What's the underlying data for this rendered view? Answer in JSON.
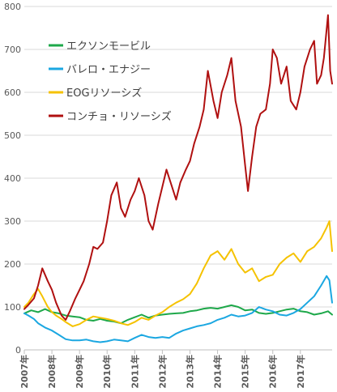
{
  "colors": {
    "exxon": "#1ea84a",
    "valero": "#1ba7e1",
    "eog": "#f5c200",
    "concho": "#b01010",
    "grid": "#d9d9d9",
    "axis": "#bfbfbf",
    "text": "#595959"
  },
  "chart_data": {
    "type": "line",
    "title": "",
    "xlabel": "",
    "ylabel": "",
    "ylim": [
      0,
      800
    ],
    "yticks": [
      0,
      100,
      200,
      300,
      400,
      500,
      600,
      700,
      800
    ],
    "xrange": [
      2007.0,
      2018.15
    ],
    "xticks": [
      {
        "value": 2007,
        "label": "2007年"
      },
      {
        "value": 2008,
        "label": "2008年"
      },
      {
        "value": 2009,
        "label": "2009年"
      },
      {
        "value": 2010,
        "label": "2010年"
      },
      {
        "value": 2011,
        "label": "2011年"
      },
      {
        "value": 2012,
        "label": "2012年"
      },
      {
        "value": 2013,
        "label": "2013年"
      },
      {
        "value": 2014,
        "label": "2014年"
      },
      {
        "value": 2015,
        "label": "2015年"
      },
      {
        "value": 2016,
        "label": "2016年"
      },
      {
        "value": 2017,
        "label": "2017年"
      }
    ],
    "grid": "horizontal",
    "legend_position": "top-left",
    "series": [
      {
        "name": "エクソンモービル",
        "color_key": "exxon",
        "x": [
          2007.0,
          2007.25,
          2007.5,
          2007.75,
          2008.0,
          2008.25,
          2008.5,
          2008.75,
          2009.0,
          2009.25,
          2009.5,
          2009.75,
          2010.0,
          2010.25,
          2010.5,
          2010.75,
          2011.0,
          2011.25,
          2011.5,
          2011.75,
          2012.0,
          2012.25,
          2012.5,
          2012.75,
          2013.0,
          2013.25,
          2013.5,
          2013.75,
          2014.0,
          2014.25,
          2014.5,
          2014.75,
          2015.0,
          2015.25,
          2015.5,
          2015.75,
          2016.0,
          2016.25,
          2016.5,
          2016.75,
          2017.0,
          2017.25,
          2017.5,
          2017.75,
          2018.0,
          2018.15
        ],
        "y": [
          85,
          92,
          88,
          95,
          88,
          85,
          80,
          78,
          76,
          70,
          68,
          72,
          68,
          66,
          62,
          70,
          76,
          82,
          75,
          80,
          82,
          84,
          85,
          86,
          90,
          92,
          96,
          98,
          96,
          100,
          104,
          100,
          92,
          94,
          86,
          84,
          86,
          90,
          94,
          96,
          90,
          88,
          82,
          85,
          90,
          82
        ]
      },
      {
        "name": "バレロ・エナジー",
        "color_key": "valero",
        "x": [
          2007.0,
          2007.15,
          2007.35,
          2007.5,
          2007.75,
          2008.0,
          2008.25,
          2008.5,
          2008.75,
          2009.0,
          2009.25,
          2009.5,
          2009.75,
          2010.0,
          2010.25,
          2010.5,
          2010.75,
          2011.0,
          2011.25,
          2011.5,
          2011.75,
          2012.0,
          2012.25,
          2012.5,
          2012.75,
          2013.0,
          2013.25,
          2013.5,
          2013.75,
          2014.0,
          2014.25,
          2014.5,
          2014.75,
          2015.0,
          2015.25,
          2015.5,
          2015.75,
          2016.0,
          2016.25,
          2016.5,
          2016.75,
          2017.0,
          2017.25,
          2017.5,
          2017.75,
          2017.95,
          2018.05,
          2018.15
        ],
        "y": [
          85,
          80,
          72,
          62,
          52,
          45,
          35,
          25,
          22,
          22,
          24,
          20,
          18,
          20,
          24,
          22,
          20,
          28,
          35,
          30,
          28,
          30,
          28,
          38,
          45,
          50,
          55,
          58,
          62,
          70,
          75,
          82,
          78,
          80,
          86,
          100,
          94,
          90,
          82,
          80,
          86,
          95,
          110,
          125,
          150,
          172,
          162,
          110
        ]
      },
      {
        "name": "EOGリソーシズ",
        "color_key": "eog",
        "x": [
          2007.0,
          2007.15,
          2007.35,
          2007.5,
          2007.65,
          2007.85,
          2008.0,
          2008.15,
          2008.35,
          2008.5,
          2008.75,
          2009.0,
          2009.25,
          2009.5,
          2009.75,
          2010.0,
          2010.25,
          2010.5,
          2010.75,
          2011.0,
          2011.25,
          2011.5,
          2011.75,
          2012.0,
          2012.25,
          2012.5,
          2012.75,
          2013.0,
          2013.25,
          2013.5,
          2013.75,
          2014.0,
          2014.25,
          2014.5,
          2014.75,
          2015.0,
          2015.25,
          2015.5,
          2015.75,
          2016.0,
          2016.25,
          2016.5,
          2016.75,
          2017.0,
          2017.25,
          2017.5,
          2017.75,
          2017.95,
          2018.05,
          2018.15
        ],
        "y": [
          100,
          110,
          130,
          142,
          125,
          100,
          88,
          80,
          72,
          65,
          55,
          60,
          70,
          78,
          75,
          72,
          68,
          62,
          58,
          65,
          75,
          70,
          80,
          88,
          100,
          110,
          118,
          130,
          155,
          190,
          220,
          230,
          210,
          235,
          200,
          180,
          190,
          160,
          170,
          175,
          200,
          215,
          225,
          205,
          230,
          240,
          260,
          285,
          300,
          230
        ]
      },
      {
        "name": "コンチョ・リソーシズ",
        "color_key": "concho",
        "x": [
          2007.0,
          2007.15,
          2007.35,
          2007.5,
          2007.65,
          2007.85,
          2008.0,
          2008.15,
          2008.35,
          2008.5,
          2008.65,
          2008.85,
          2009.0,
          2009.15,
          2009.35,
          2009.5,
          2009.65,
          2009.85,
          2010.0,
          2010.15,
          2010.35,
          2010.5,
          2010.65,
          2010.85,
          2011.0,
          2011.15,
          2011.35,
          2011.5,
          2011.65,
          2011.85,
          2012.0,
          2012.15,
          2012.35,
          2012.5,
          2012.65,
          2012.85,
          2013.0,
          2013.15,
          2013.35,
          2013.5,
          2013.65,
          2013.85,
          2014.0,
          2014.15,
          2014.35,
          2014.5,
          2014.65,
          2014.85,
          2015.0,
          2015.1,
          2015.25,
          2015.4,
          2015.55,
          2015.75,
          2015.9,
          2016.0,
          2016.15,
          2016.3,
          2016.5,
          2016.65,
          2016.85,
          2017.0,
          2017.15,
          2017.35,
          2017.5,
          2017.6,
          2017.75,
          2017.85,
          2018.0,
          2018.08,
          2018.15
        ],
        "y": [
          95,
          105,
          120,
          150,
          190,
          160,
          140,
          110,
          80,
          70,
          90,
          120,
          140,
          160,
          200,
          240,
          235,
          250,
          300,
          360,
          390,
          330,
          310,
          350,
          370,
          400,
          360,
          300,
          280,
          340,
          380,
          420,
          380,
          350,
          390,
          420,
          440,
          480,
          520,
          560,
          650,
          580,
          540,
          600,
          640,
          680,
          580,
          520,
          430,
          370,
          450,
          520,
          550,
          560,
          620,
          700,
          680,
          620,
          660,
          580,
          560,
          600,
          660,
          700,
          720,
          620,
          640,
          680,
          780,
          650,
          620
        ]
      }
    ]
  }
}
